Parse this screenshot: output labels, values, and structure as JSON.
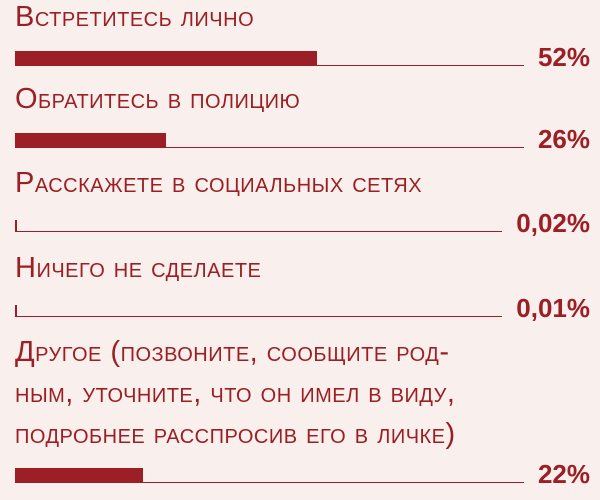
{
  "chart_data": {
    "type": "bar",
    "orientation": "horizontal",
    "categories": [
      "Встретитесь лично",
      "Обратитесь в полицию",
      "Расскажете в социальных сетях",
      "Ничего не сделаете",
      "Другое (позвоните, сообщите род-\nным, уточните, что он имел в виду,\nподробнее расспросив его в личке)"
    ],
    "values": [
      52,
      26,
      0.02,
      0.01,
      22
    ],
    "value_labels": [
      "52%",
      "26%",
      "0,02%",
      "0,01%",
      "22%"
    ],
    "unit": "%",
    "color": "#9b1f24",
    "background": "#f9efec"
  }
}
